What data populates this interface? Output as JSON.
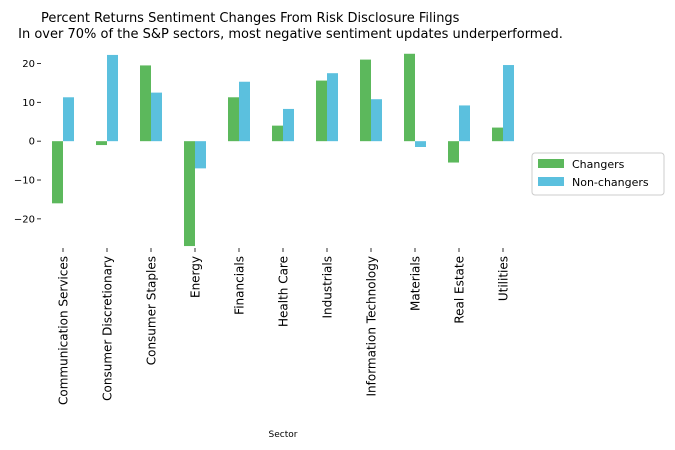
{
  "chart_data": {
    "type": "bar",
    "title": "Percent Returns Sentiment Changes From Risk Disclosure Filings",
    "subtitle": " In over 70% of the S&P sectors, most negative sentiment updates underperformed.",
    "xlabel": "Sector",
    "ylabel": "",
    "categories": [
      "Communication Services",
      "Consumer Discretionary",
      "Consumer Staples",
      "Energy",
      "Financials",
      "Health Care",
      "Industrials",
      "Information Technology",
      "Materials",
      "Real Estate",
      "Utilities"
    ],
    "series": [
      {
        "name": "Changers",
        "color": "#5cb85c",
        "values": [
          -16,
          -1,
          19.5,
          -27,
          11.3,
          4,
          15.6,
          21,
          22.5,
          -5.5,
          3.5
        ]
      },
      {
        "name": "Non-changers",
        "color": "#5bc0de",
        "values": [
          11.3,
          22.2,
          12.5,
          -7,
          15.3,
          8.3,
          17.5,
          10.8,
          -1.5,
          9.2,
          19.6
        ]
      }
    ],
    "ylim": [
      -27.5,
      24.5
    ],
    "yticks": [
      {
        "value": 20,
        "label": "20"
      },
      {
        "value": 10,
        "label": "10"
      },
      {
        "value": 0,
        "label": "0"
      },
      {
        "value": -10,
        "label": "−10"
      },
      {
        "value": -20,
        "label": "−20"
      }
    ],
    "legend_position": "right",
    "grid": false
  }
}
